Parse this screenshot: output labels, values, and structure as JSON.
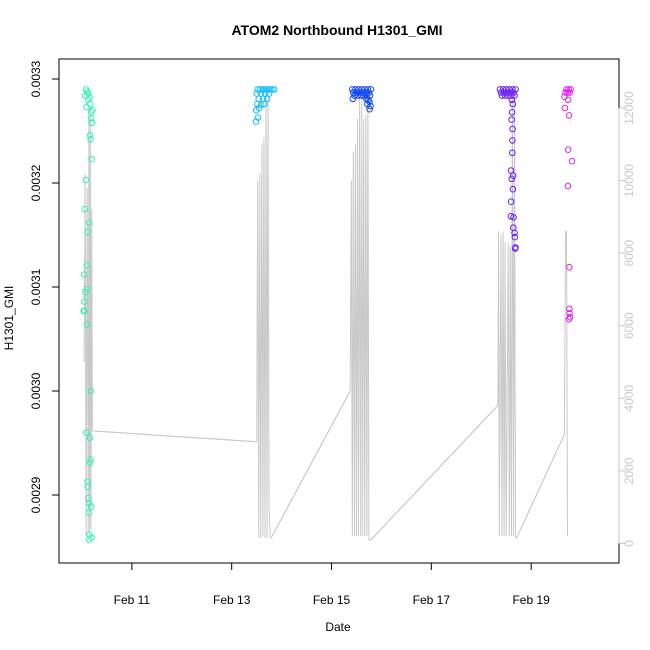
{
  "chart_data": {
    "type": "scatter",
    "title": "ATOM2 Northbound H1301_GMI",
    "xlabel": "Date",
    "ylabel": "H1301_GMI",
    "xlim": [
      "2016-02-09T19:12",
      "2016-02-20T12:00"
    ],
    "ylim": [
      0.00285,
      0.0033
    ],
    "y2lim": [
      -100,
      12800
    ],
    "x_ticks": [
      {
        "label": "Feb 11",
        "value": "2016-02-11T00:00"
      },
      {
        "label": "Feb 13",
        "value": "2016-02-13T00:00"
      },
      {
        "label": "Feb 15",
        "value": "2016-02-15T00:00"
      },
      {
        "label": "Feb 17",
        "value": "2016-02-17T00:00"
      },
      {
        "label": "Feb 19",
        "value": "2016-02-19T00:00"
      }
    ],
    "y_ticks": [
      {
        "label": "0.0029",
        "value": 0.0029
      },
      {
        "label": "0.0030",
        "value": 0.003
      },
      {
        "label": "0.0031",
        "value": 0.0031
      },
      {
        "label": "0.0032",
        "value": 0.0032
      },
      {
        "label": "0.0033",
        "value": 0.0033
      }
    ],
    "y2_ticks": [
      {
        "label": "0",
        "value": 0
      },
      {
        "label": "2000",
        "value": 2000
      },
      {
        "label": "4000",
        "value": 4000
      },
      {
        "label": "6000",
        "value": 6000
      },
      {
        "label": "8000",
        "value": 8000
      },
      {
        "label": "10000",
        "value": 10000
      },
      {
        "label": "12000",
        "value": 12000
      }
    ],
    "grid": false,
    "series": [
      {
        "color": "#2ef5b0",
        "points": [
          [
            "2016-02-10T02:00",
            0.00329
          ],
          [
            "2016-02-10T02:30",
            0.003288
          ],
          [
            "2016-02-10T03:00",
            0.003286
          ],
          [
            "2016-02-10T01:30",
            0.003284
          ],
          [
            "2016-02-10T03:40",
            0.003282
          ],
          [
            "2016-02-10T02:50",
            0.00328
          ],
          [
            "2016-02-10T04:00",
            0.003276
          ],
          [
            "2016-02-10T02:10",
            0.003273
          ],
          [
            "2016-02-10T04:30",
            0.003268
          ],
          [
            "2016-02-10T05:00",
            0.00327
          ],
          [
            "2016-02-10T04:20",
            0.003262
          ],
          [
            "2016-02-10T04:50",
            0.003258
          ],
          [
            "2016-02-10T03:50",
            0.003246
          ],
          [
            "2016-02-10T04:10",
            0.003242
          ],
          [
            "2016-02-10T04:40",
            0.003223
          ],
          [
            "2016-02-10T01:50",
            0.003203
          ],
          [
            "2016-02-10T01:20",
            0.003175
          ],
          [
            "2016-02-10T03:30",
            0.003162
          ],
          [
            "2016-02-10T02:40",
            0.003153
          ],
          [
            "2016-02-10T02:20",
            0.003121
          ],
          [
            "2016-02-10T01:00",
            0.003112
          ],
          [
            "2016-02-10T02:15",
            0.003098
          ],
          [
            "2016-02-10T01:40",
            0.003095
          ],
          [
            "2016-02-10T01:10",
            0.003086
          ],
          [
            "2016-02-10T00:50",
            0.003077
          ],
          [
            "2016-02-10T01:15",
            0.003077
          ],
          [
            "2016-02-10T02:25",
            0.003064
          ],
          [
            "2016-02-10T04:15",
            0.003
          ],
          [
            "2016-02-10T02:05",
            0.00296
          ],
          [
            "2016-02-10T03:45",
            0.002955
          ],
          [
            "2016-02-10T04:05",
            0.002934
          ],
          [
            "2016-02-10T03:55",
            0.002931
          ],
          [
            "2016-02-10T02:35",
            0.002913
          ],
          [
            "2016-02-10T02:45",
            0.002908
          ],
          [
            "2016-02-10T03:05",
            0.002897
          ],
          [
            "2016-02-10T03:25",
            0.002892
          ],
          [
            "2016-02-10T04:25",
            0.002889
          ],
          [
            "2016-02-10T03:15",
            0.002883
          ],
          [
            "2016-02-10T03:35",
            0.002862
          ],
          [
            "2016-02-10T04:35",
            0.002859
          ],
          [
            "2016-02-10T03:20",
            0.002857
          ]
        ]
      },
      {
        "color": "#18bff2",
        "points": [
          [
            "2016-02-13T12:30",
            0.00329
          ],
          [
            "2016-02-13T13:30",
            0.00329
          ],
          [
            "2016-02-13T14:30",
            0.00329
          ],
          [
            "2016-02-13T15:30",
            0.00329
          ],
          [
            "2016-02-13T16:30",
            0.00329
          ],
          [
            "2016-02-13T17:30",
            0.00329
          ],
          [
            "2016-02-13T18:30",
            0.00329
          ],
          [
            "2016-02-13T19:30",
            0.00329
          ],
          [
            "2016-02-13T20:30",
            0.00329
          ],
          [
            "2016-02-13T12:00",
            0.003286
          ],
          [
            "2016-02-13T14:00",
            0.003286
          ],
          [
            "2016-02-13T16:00",
            0.003286
          ],
          [
            "2016-02-13T18:00",
            0.003286
          ],
          [
            "2016-02-13T13:00",
            0.003281
          ],
          [
            "2016-02-13T15:00",
            0.003281
          ],
          [
            "2016-02-13T17:00",
            0.003281
          ],
          [
            "2016-02-13T12:20",
            0.003276
          ],
          [
            "2016-02-13T15:40",
            0.003276
          ],
          [
            "2016-02-13T11:50",
            0.00327
          ],
          [
            "2016-02-13T13:10",
            0.003272
          ],
          [
            "2016-02-13T14:10",
            0.003275
          ],
          [
            "2016-02-13T12:40",
            0.003263
          ],
          [
            "2016-02-13T11:40",
            0.003259
          ]
        ]
      },
      {
        "color": "#0d46f0",
        "points": [
          [
            "2016-02-15T10:00",
            0.00329
          ],
          [
            "2016-02-15T11:30",
            0.00329
          ],
          [
            "2016-02-15T13:00",
            0.00329
          ],
          [
            "2016-02-15T14:30",
            0.00329
          ],
          [
            "2016-02-15T16:00",
            0.00329
          ],
          [
            "2016-02-15T17:30",
            0.00329
          ],
          [
            "2016-02-15T19:00",
            0.00329
          ],
          [
            "2016-02-15T10:30",
            0.003287
          ],
          [
            "2016-02-15T12:00",
            0.003287
          ],
          [
            "2016-02-15T13:30",
            0.003287
          ],
          [
            "2016-02-15T15:00",
            0.003287
          ],
          [
            "2016-02-15T16:30",
            0.003287
          ],
          [
            "2016-02-15T18:00",
            0.003287
          ],
          [
            "2016-02-15T11:00",
            0.003284
          ],
          [
            "2016-02-15T12:30",
            0.003284
          ],
          [
            "2016-02-15T14:00",
            0.003284
          ],
          [
            "2016-02-15T15:30",
            0.003284
          ],
          [
            "2016-02-15T17:00",
            0.003284
          ],
          [
            "2016-02-15T18:30",
            0.003284
          ],
          [
            "2016-02-15T10:15",
            0.003281
          ],
          [
            "2016-02-15T16:45",
            0.003281
          ],
          [
            "2016-02-15T17:45",
            0.00328
          ],
          [
            "2016-02-15T18:15",
            0.003278
          ],
          [
            "2016-02-15T17:15",
            0.003276
          ],
          [
            "2016-02-15T18:45",
            0.003274
          ],
          [
            "2016-02-15T18:20",
            0.003271
          ]
        ]
      },
      {
        "color": "#6a1ff0",
        "points": [
          [
            "2016-02-18T09:00",
            0.00329
          ],
          [
            "2016-02-18T10:30",
            0.00329
          ],
          [
            "2016-02-18T12:00",
            0.00329
          ],
          [
            "2016-02-18T13:30",
            0.00329
          ],
          [
            "2016-02-18T15:00",
            0.00329
          ],
          [
            "2016-02-18T16:30",
            0.00329
          ],
          [
            "2016-02-18T09:30",
            0.003287
          ],
          [
            "2016-02-18T11:00",
            0.003287
          ],
          [
            "2016-02-18T12:30",
            0.003287
          ],
          [
            "2016-02-18T14:00",
            0.003287
          ],
          [
            "2016-02-18T15:30",
            0.003287
          ],
          [
            "2016-02-18T10:00",
            0.003284
          ],
          [
            "2016-02-18T11:30",
            0.003284
          ],
          [
            "2016-02-18T13:00",
            0.003284
          ],
          [
            "2016-02-18T14:30",
            0.003284
          ],
          [
            "2016-02-18T16:00",
            0.003284
          ],
          [
            "2016-02-18T14:45",
            0.00328
          ],
          [
            "2016-02-18T15:10",
            0.003276
          ],
          [
            "2016-02-18T14:50",
            0.003268
          ],
          [
            "2016-02-18T14:35",
            0.003261
          ],
          [
            "2016-02-18T15:05",
            0.003252
          ],
          [
            "2016-02-18T15:00",
            0.003241
          ],
          [
            "2016-02-18T14:55",
            0.003229
          ],
          [
            "2016-02-18T14:20",
            0.003212
          ],
          [
            "2016-02-18T15:20",
            0.003207
          ],
          [
            "2016-02-18T14:40",
            0.003204
          ],
          [
            "2016-02-18T15:15",
            0.003194
          ],
          [
            "2016-02-18T14:25",
            0.003182
          ],
          [
            "2016-02-18T14:15",
            0.003168
          ],
          [
            "2016-02-18T15:30",
            0.003167
          ],
          [
            "2016-02-18T15:25",
            0.003157
          ],
          [
            "2016-02-18T16:00",
            0.003152
          ],
          [
            "2016-02-18T16:10",
            0.003148
          ],
          [
            "2016-02-18T16:30",
            0.003138
          ],
          [
            "2016-02-18T16:20",
            0.003137
          ]
        ]
      },
      {
        "color": "#dd22f0",
        "points": [
          [
            "2016-02-19T17:00",
            0.00329
          ],
          [
            "2016-02-19T18:00",
            0.00329
          ],
          [
            "2016-02-19T19:00",
            0.00329
          ],
          [
            "2016-02-19T16:30",
            0.003287
          ],
          [
            "2016-02-19T17:30",
            0.003287
          ],
          [
            "2016-02-19T18:30",
            0.003287
          ],
          [
            "2016-02-19T16:00",
            0.003283
          ],
          [
            "2016-02-19T17:45",
            0.00328
          ],
          [
            "2016-02-19T16:15",
            0.003272
          ],
          [
            "2016-02-19T18:15",
            0.003265
          ],
          [
            "2016-02-19T17:50",
            0.003232
          ],
          [
            "2016-02-19T19:40",
            0.003221
          ],
          [
            "2016-02-19T17:40",
            0.003197
          ],
          [
            "2016-02-19T18:20",
            0.003119
          ],
          [
            "2016-02-19T18:25",
            0.003079
          ],
          [
            "2016-02-19T18:30",
            0.003075
          ],
          [
            "2016-02-19T18:40",
            0.003071
          ],
          [
            "2016-02-19T18:10",
            0.003069
          ]
        ]
      }
    ],
    "secondary_line": {
      "color": "#c8c8c8",
      "points": [
        [
          "2016-02-10T01:00",
          5000
        ],
        [
          "2016-02-10T01:30",
          10200
        ],
        [
          "2016-02-10T02:00",
          200
        ],
        [
          "2016-02-10T02:30",
          9800
        ],
        [
          "2016-02-10T03:00",
          300
        ],
        [
          "2016-02-10T03:20",
          12000
        ],
        [
          "2016-02-10T03:40",
          200
        ],
        [
          "2016-02-10T04:00",
          11800
        ],
        [
          "2016-02-10T04:20",
          400
        ],
        [
          "2016-02-10T04:40",
          9200
        ],
        [
          "2016-02-10T05:00",
          3100
        ],
        [
          "2016-02-13T12:00",
          2800
        ],
        [
          "2016-02-13T12:30",
          10000
        ],
        [
          "2016-02-13T13:00",
          150
        ],
        [
          "2016-02-13T13:30",
          10200
        ],
        [
          "2016-02-13T14:00",
          150
        ],
        [
          "2016-02-13T14:30",
          11000
        ],
        [
          "2016-02-13T15:00",
          200
        ],
        [
          "2016-02-13T15:30",
          11200
        ],
        [
          "2016-02-13T16:00",
          150
        ],
        [
          "2016-02-13T16:30",
          12400
        ],
        [
          "2016-02-13T17:00",
          150
        ],
        [
          "2016-02-13T17:30",
          12400
        ],
        [
          "2016-02-13T18:00",
          1000
        ],
        [
          "2016-02-13T18:30",
          150
        ],
        [
          "2016-02-13T19:00",
          150
        ],
        [
          "2016-02-15T09:00",
          4200
        ],
        [
          "2016-02-15T09:30",
          10000
        ],
        [
          "2016-02-15T10:00",
          200
        ],
        [
          "2016-02-15T10:30",
          10800
        ],
        [
          "2016-02-15T11:00",
          200
        ],
        [
          "2016-02-15T11:30",
          11000
        ],
        [
          "2016-02-15T12:00",
          200
        ],
        [
          "2016-02-15T12:30",
          11700
        ],
        [
          "2016-02-15T13:00",
          200
        ],
        [
          "2016-02-15T13:30",
          12400
        ],
        [
          "2016-02-15T14:00",
          200
        ],
        [
          "2016-02-15T14:30",
          12200
        ],
        [
          "2016-02-15T15:00",
          200
        ],
        [
          "2016-02-15T15:30",
          11700
        ],
        [
          "2016-02-15T16:00",
          200
        ],
        [
          "2016-02-15T16:30",
          11800
        ],
        [
          "2016-02-15T17:00",
          200
        ],
        [
          "2016-02-15T17:30",
          12400
        ],
        [
          "2016-02-15T18:00",
          100
        ],
        [
          "2016-02-15T19:00",
          100
        ],
        [
          "2016-02-18T08:00",
          3800
        ],
        [
          "2016-02-18T08:20",
          8600
        ],
        [
          "2016-02-18T08:40",
          200
        ],
        [
          "2016-02-18T09:30",
          8500
        ],
        [
          "2016-02-18T10:00",
          200
        ],
        [
          "2016-02-18T10:30",
          8600
        ],
        [
          "2016-02-18T11:00",
          200
        ],
        [
          "2016-02-18T11:30",
          8300
        ],
        [
          "2016-02-18T12:00",
          200
        ],
        [
          "2016-02-18T13:00",
          8300
        ],
        [
          "2016-02-18T13:30",
          200
        ],
        [
          "2016-02-18T14:00",
          8200
        ],
        [
          "2016-02-18T14:30",
          200
        ],
        [
          "2016-02-18T15:00",
          12400
        ],
        [
          "2016-02-18T15:30",
          200
        ],
        [
          "2016-02-18T16:00",
          12300
        ],
        [
          "2016-02-18T16:30",
          150
        ],
        [
          "2016-02-18T17:00",
          150
        ],
        [
          "2016-02-19T16:00",
          3000
        ],
        [
          "2016-02-19T16:30",
          8600
        ],
        [
          "2016-02-19T17:00",
          8600
        ],
        [
          "2016-02-19T17:30",
          200
        ]
      ]
    },
    "connector_line": {
      "color": "#c8c8c8",
      "points": [
        [
          "2016-02-10T05:00",
          3100
        ],
        [
          "2016-02-13T12:00",
          2800
        ],
        [
          "2016-02-13T19:00",
          150
        ],
        [
          "2016-02-15T09:00",
          4200
        ],
        [
          "2016-02-15T19:00",
          100
        ],
        [
          "2016-02-18T08:00",
          3800
        ],
        [
          "2016-02-18T17:00",
          150
        ],
        [
          "2016-02-19T16:00",
          3000
        ]
      ]
    }
  }
}
